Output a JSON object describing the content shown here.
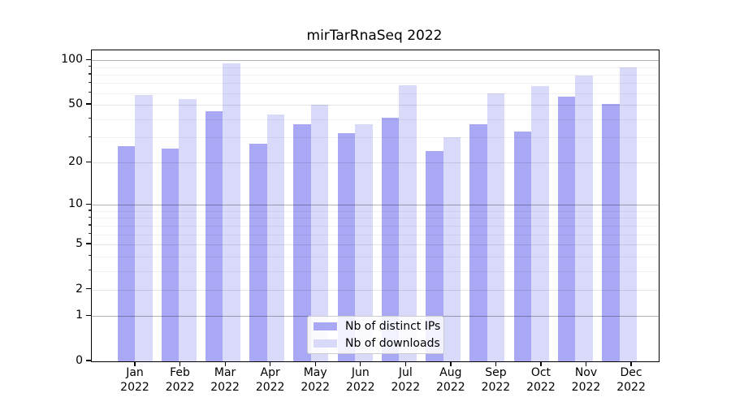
{
  "chart_data": {
    "type": "bar",
    "title": "mirTarRnaSeq 2022",
    "categories": [
      "Jan",
      "Feb",
      "Mar",
      "Apr",
      "May",
      "Jun",
      "Jul",
      "Aug",
      "Sep",
      "Oct",
      "Nov",
      "Dec"
    ],
    "category_year": "2022",
    "series": [
      {
        "name": "Nb of distinct IPs",
        "color": "#a8a8f4",
        "values": [
          26,
          25,
          45,
          27,
          37,
          32,
          41,
          24,
          37,
          33,
          57,
          51
        ]
      },
      {
        "name": "Nb of downloads",
        "color": "#d9d9fa",
        "values": [
          58,
          55,
          95,
          43,
          50,
          37,
          68,
          30,
          60,
          67,
          79,
          90
        ]
      }
    ],
    "xlabel": "",
    "ylabel": "",
    "yscale": "log1p",
    "ylim": [
      0,
      116.5
    ],
    "yticks": [
      100,
      50,
      20,
      10,
      5,
      2,
      1,
      0
    ],
    "yticks_decade": [
      1,
      10,
      100
    ],
    "yticks_minor": [
      3,
      4,
      6,
      7,
      8,
      9,
      30,
      40,
      60,
      70,
      80,
      90
    ],
    "grid": "on",
    "legend_position": "lower center"
  }
}
